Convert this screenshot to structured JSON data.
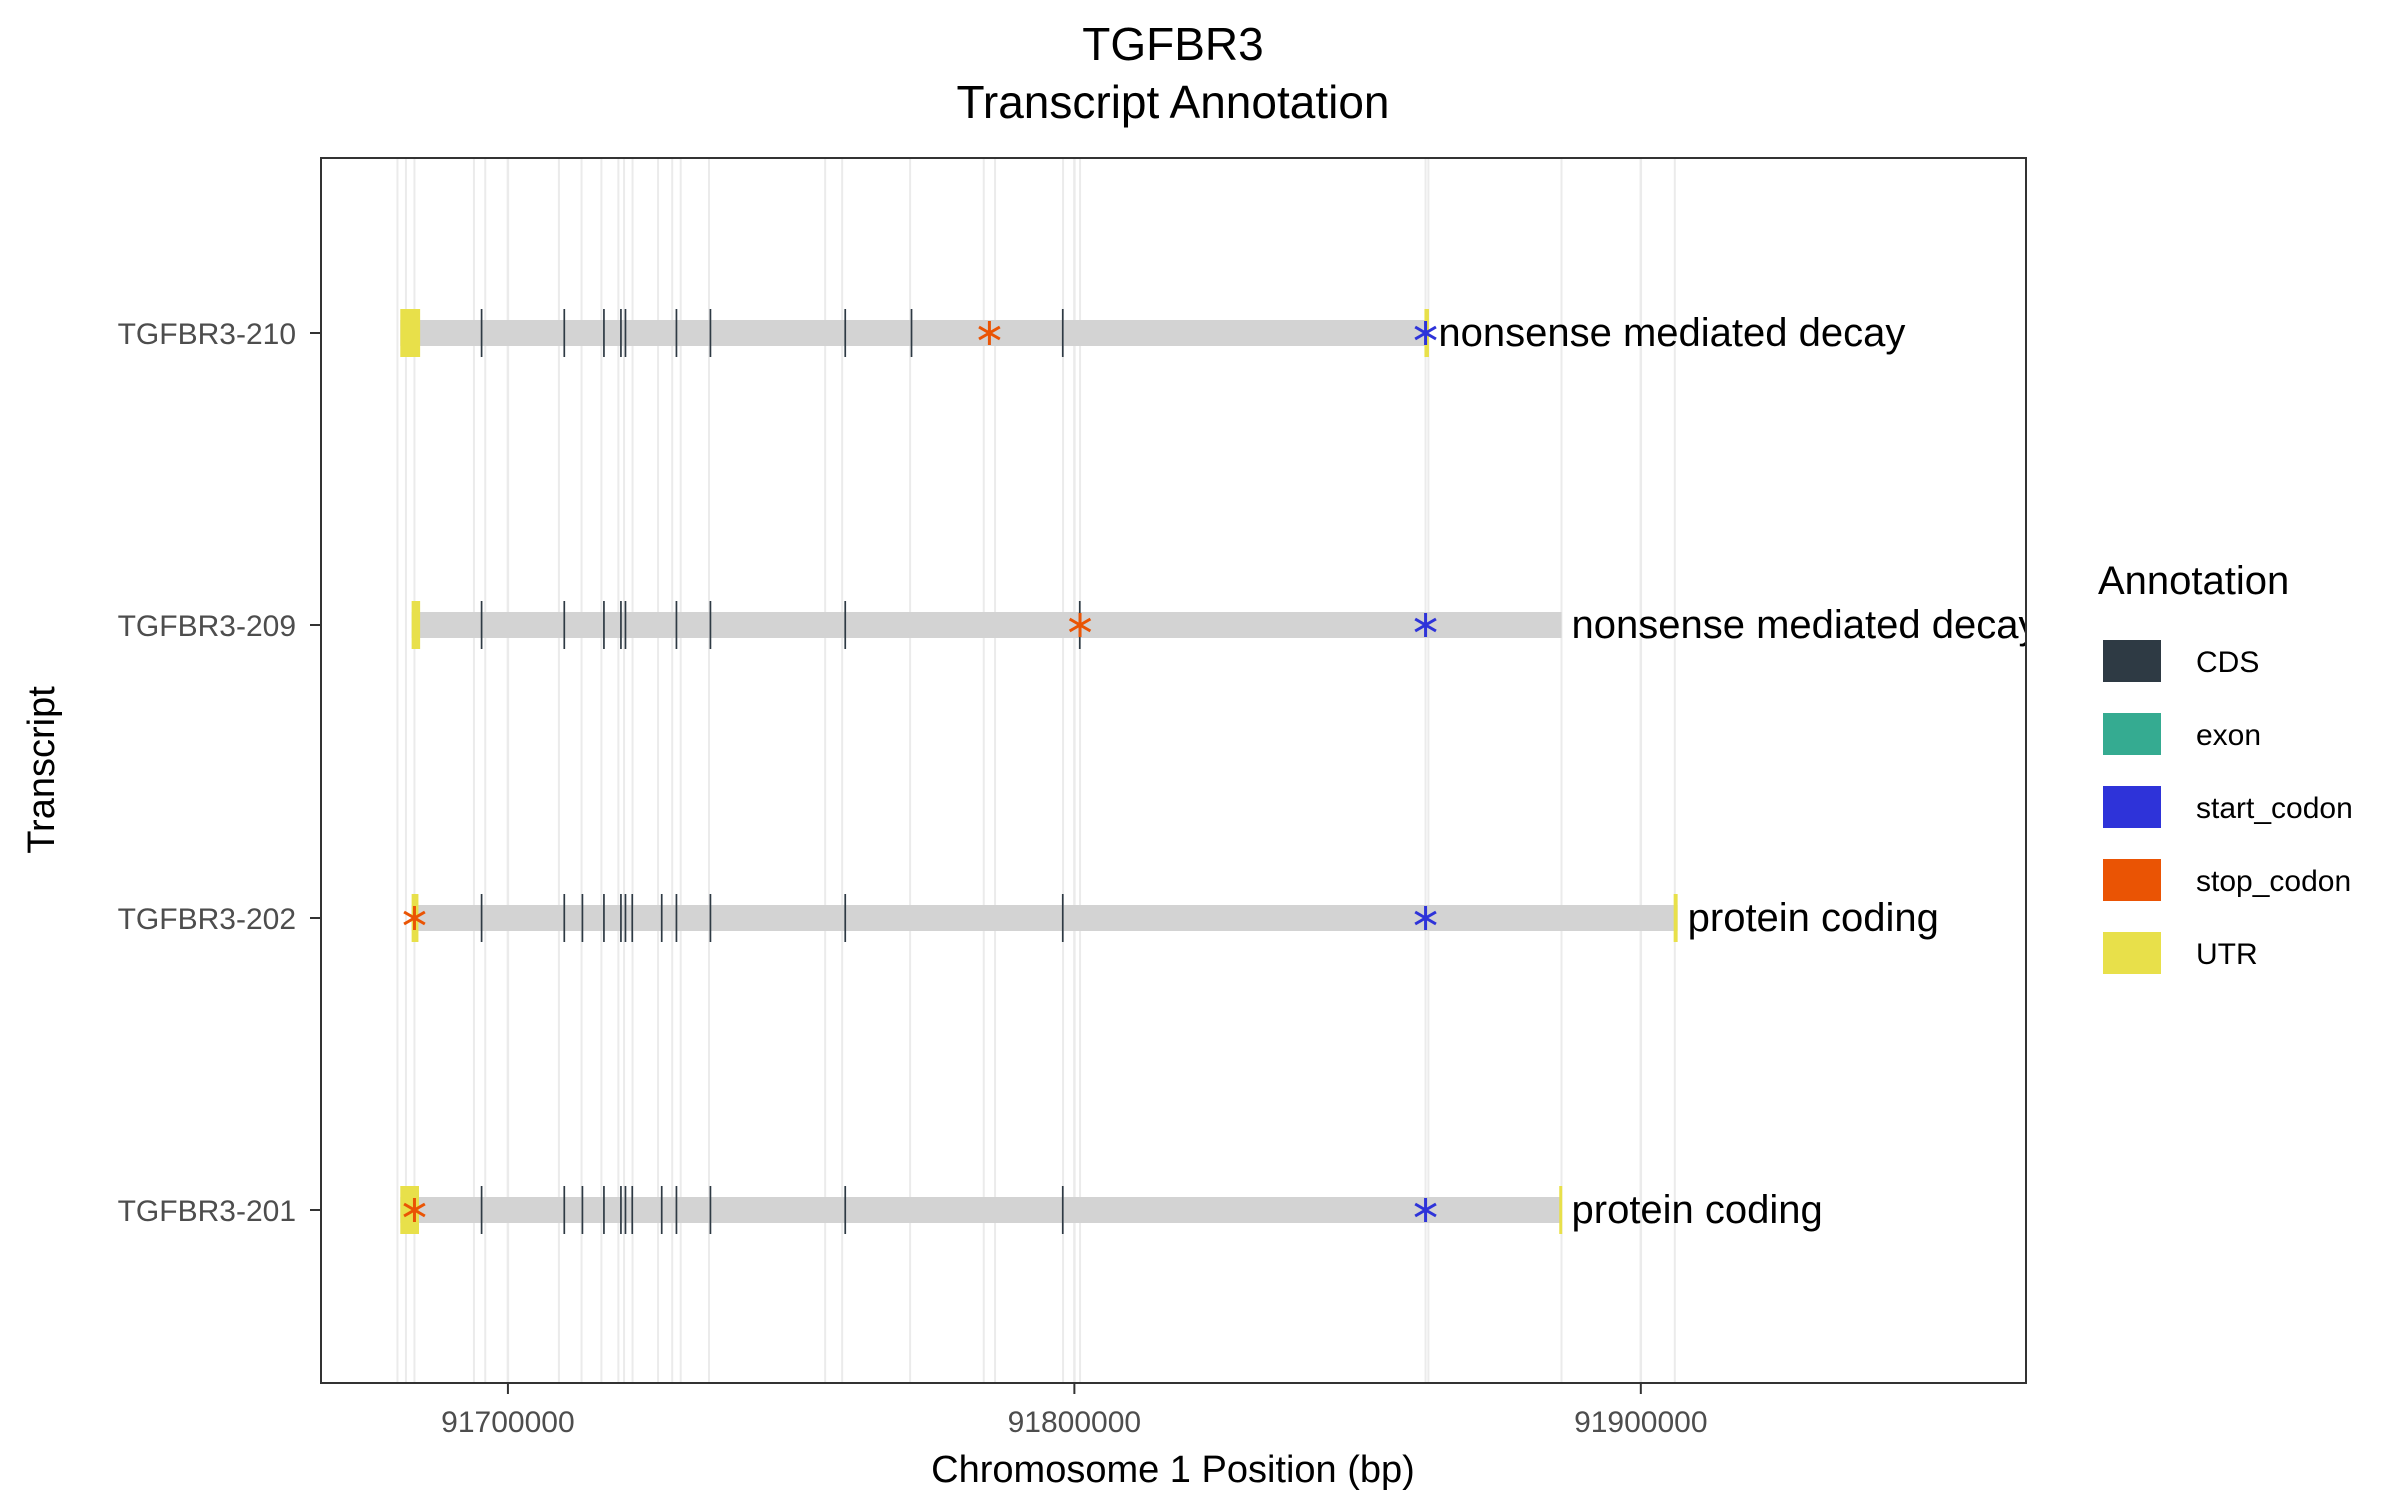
{
  "chart_data": {
    "type": "gene-track",
    "title_lines": [
      "TGFBR3",
      "Transcript Annotation"
    ],
    "xlabel": "Chromosome 1 Position (bp)",
    "ylabel": "Transcript",
    "xlim": [
      91667000,
      91968000
    ],
    "x_ticks": [
      91700000,
      91800000,
      91900000
    ],
    "x_tick_labels": [
      "91700000",
      "91800000",
      "91900000"
    ],
    "grid": "major and minor vertical at feature boundaries, light gray",
    "legend": {
      "title": "Annotation",
      "placement": "right",
      "items": [
        {
          "label": "CDS",
          "color": "#2e3a44"
        },
        {
          "label": "exon",
          "color": "#35ab91"
        },
        {
          "label": "start_codon",
          "color": "#2e33d9"
        },
        {
          "label": "stop_codon",
          "color": "#ea5404"
        },
        {
          "label": "UTR",
          "color": "#e8e04a"
        }
      ]
    },
    "transcript_line_color": "#d3d3d3",
    "grid_positions": [
      91680500,
      91682000,
      91683500,
      91694000,
      91696000,
      91709000,
      91713000,
      91716500,
      91719500,
      91720500,
      91722000,
      91726500,
      91729000,
      91730500,
      91735500,
      91756000,
      91759000,
      91771000,
      91784000,
      91786000,
      91798000,
      91801000,
      91862500,
      91886000,
      91906000,
      91862000
    ],
    "transcripts": [
      {
        "name": "TGFBR3-210",
        "biotype": "nonsense mediated decay",
        "start": 91681000,
        "end": 91862500,
        "utr": [
          [
            91681000,
            91684500
          ],
          [
            91861800,
            91862600
          ]
        ],
        "cds": [
          [
            91695200,
            91695500
          ],
          [
            91709800,
            91710100
          ],
          [
            91716800,
            91717100
          ],
          [
            91719800,
            91720100
          ],
          [
            91720600,
            91720900
          ],
          [
            91729600,
            91729900
          ],
          [
            91735600,
            91735900
          ],
          [
            91759400,
            91759700
          ],
          [
            91771100,
            91771400
          ],
          [
            91797800,
            91798100
          ]
        ],
        "start_codon": 91862000,
        "stop_codon": 91785000
      },
      {
        "name": "TGFBR3-209",
        "biotype": "nonsense mediated decay",
        "start": 91683000,
        "end": 91886000,
        "utr": [
          [
            91683000,
            91684500
          ]
        ],
        "cds": [
          [
            91695200,
            91695500
          ],
          [
            91709800,
            91710100
          ],
          [
            91716800,
            91717100
          ],
          [
            91719800,
            91720100
          ],
          [
            91720600,
            91720900
          ],
          [
            91729600,
            91729900
          ],
          [
            91735600,
            91735900
          ],
          [
            91759400,
            91759700
          ],
          [
            91800800,
            91801100
          ]
        ],
        "start_codon": 91862000,
        "stop_codon": 91801000
      },
      {
        "name": "TGFBR3-202",
        "biotype": "protein coding",
        "start": 91683000,
        "end": 91906500,
        "utr": [
          [
            91683000,
            91684200
          ],
          [
            91905800,
            91906500
          ]
        ],
        "cds": [
          [
            91695200,
            91695500
          ],
          [
            91709800,
            91710100
          ],
          [
            91713000,
            91713300
          ],
          [
            91716800,
            91717100
          ],
          [
            91719800,
            91720100
          ],
          [
            91720600,
            91720900
          ],
          [
            91721800,
            91722100
          ],
          [
            91727000,
            91727300
          ],
          [
            91729600,
            91729900
          ],
          [
            91735600,
            91735900
          ],
          [
            91759400,
            91759700
          ],
          [
            91797800,
            91798100
          ]
        ],
        "start_codon": 91862000,
        "stop_codon": 91683500
      },
      {
        "name": "TGFBR3-201",
        "biotype": "protein coding",
        "start": 91681000,
        "end": 91886000,
        "utr": [
          [
            91681000,
            91684300
          ],
          [
            91885600,
            91886000
          ]
        ],
        "cds": [
          [
            91695200,
            91695500
          ],
          [
            91709800,
            91710100
          ],
          [
            91713000,
            91713300
          ],
          [
            91716800,
            91717100
          ],
          [
            91719800,
            91720100
          ],
          [
            91720600,
            91720900
          ],
          [
            91721800,
            91722100
          ],
          [
            91727000,
            91727300
          ],
          [
            91729600,
            91729900
          ],
          [
            91735600,
            91735900
          ],
          [
            91759400,
            91759700
          ],
          [
            91797800,
            91798100
          ]
        ],
        "start_codon": 91862000,
        "stop_codon": 91683500
      }
    ]
  }
}
